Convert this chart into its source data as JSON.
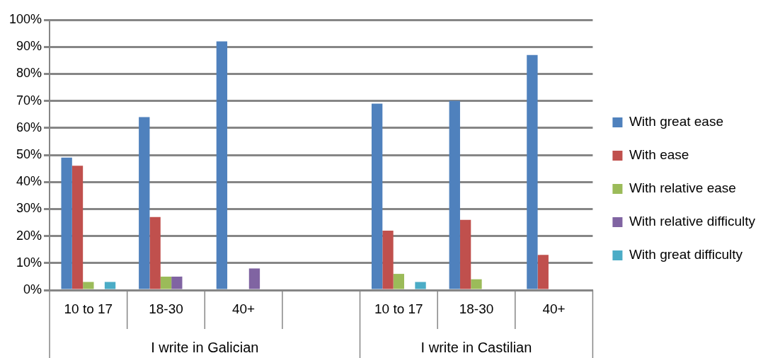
{
  "chart_data": {
    "type": "bar",
    "categories": [
      "10 to 17",
      "18-30",
      "40+",
      null,
      "10 to 17",
      "18-30",
      "40+"
    ],
    "series": [
      {
        "name": "With great ease",
        "color": "#4f81bd",
        "values": [
          49,
          64,
          92,
          null,
          69,
          70,
          87
        ]
      },
      {
        "name": "With ease",
        "color": "#c0504d",
        "values": [
          46,
          27,
          0,
          null,
          22,
          26,
          13
        ]
      },
      {
        "name": "With relative ease",
        "color": "#9bbb59",
        "values": [
          3,
          5,
          0,
          null,
          6,
          4,
          0
        ]
      },
      {
        "name": "With relative difficulty",
        "color": "#8064a2",
        "values": [
          0,
          5,
          8,
          null,
          0,
          0,
          0
        ]
      },
      {
        "name": "With great difficulty",
        "color": "#4bacc6",
        "values": [
          3,
          0,
          0,
          null,
          3,
          0,
          0
        ]
      }
    ],
    "ylim": [
      0,
      100
    ],
    "yticks": [
      {
        "value": 0,
        "label": "0%"
      },
      {
        "value": 10,
        "label": "10%"
      },
      {
        "value": 20,
        "label": "20%"
      },
      {
        "value": 30,
        "label": "30%"
      },
      {
        "value": 40,
        "label": "40%"
      },
      {
        "value": 50,
        "label": "50%"
      },
      {
        "value": 60,
        "label": "60%"
      },
      {
        "value": 70,
        "label": "70%"
      },
      {
        "value": 80,
        "label": "80%"
      },
      {
        "value": 90,
        "label": "90%"
      },
      {
        "value": 100,
        "label": "100%"
      }
    ],
    "grid": "y",
    "legend": "right",
    "annotations": [
      "I write in Galician",
      "I write in Castilian"
    ]
  }
}
